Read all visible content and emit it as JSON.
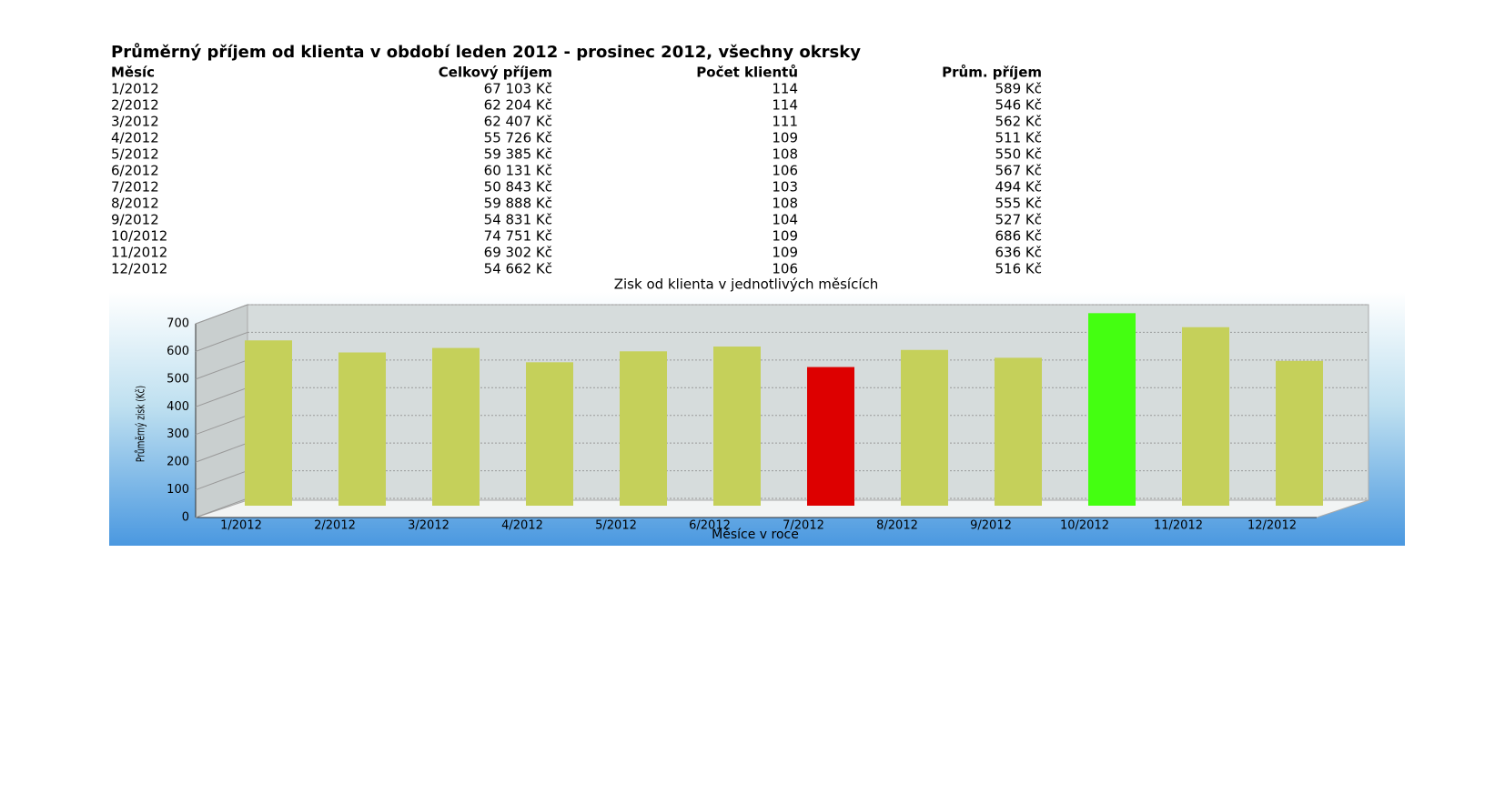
{
  "header": {
    "title": "Průměrný příjem od klienta v období leden 2012 - prosinec 2012, všechny okrsky"
  },
  "table": {
    "columns": [
      "Měsíc",
      "Celkový příjem",
      "Počet klientů",
      "Prům. příjem"
    ],
    "rows": [
      [
        "1/2012",
        "67 103 Kč",
        "114",
        "589 Kč"
      ],
      [
        "2/2012",
        "62 204 Kč",
        "114",
        "546 Kč"
      ],
      [
        "3/2012",
        "62 407 Kč",
        "111",
        "562 Kč"
      ],
      [
        "4/2012",
        "55 726 Kč",
        "109",
        "511 Kč"
      ],
      [
        "5/2012",
        "59 385 Kč",
        "108",
        "550 Kč"
      ],
      [
        "6/2012",
        "60 131 Kč",
        "106",
        "567 Kč"
      ],
      [
        "7/2012",
        "50 843 Kč",
        "103",
        "494 Kč"
      ],
      [
        "8/2012",
        "59 888 Kč",
        "108",
        "555 Kč"
      ],
      [
        "9/2012",
        "54 831 Kč",
        "104",
        "527 Kč"
      ],
      [
        "10/2012",
        "74 751 Kč",
        "109",
        "686 Kč"
      ],
      [
        "11/2012",
        "69 302 Kč",
        "109",
        "636 Kč"
      ],
      [
        "12/2012",
        "54 662 Kč",
        "106",
        "516 Kč"
      ]
    ]
  },
  "chart_data": {
    "type": "bar",
    "title": "Zisk od klienta v jednotlivých měsících",
    "x_label": "Měsíce v roce",
    "y_label": "Průměrný zisk (Kč)",
    "categories": [
      "1/2012",
      "2/2012",
      "3/2012",
      "4/2012",
      "5/2012",
      "6/2012",
      "7/2012",
      "8/2012",
      "9/2012",
      "10/2012",
      "11/2012",
      "12/2012"
    ],
    "values": [
      589,
      546,
      562,
      511,
      550,
      567,
      494,
      555,
      527,
      686,
      636,
      516
    ],
    "colors": [
      "#c5d05a",
      "#c5d05a",
      "#c5d05a",
      "#c5d05a",
      "#c5d05a",
      "#c5d05a",
      "#dd0000",
      "#c5d05a",
      "#c5d05a",
      "#44ff11",
      "#c5d05a",
      "#c5d05a"
    ],
    "ylim": [
      0,
      700
    ],
    "yticks": [
      0,
      100,
      200,
      300,
      400,
      500,
      600,
      700
    ],
    "grid": true
  }
}
